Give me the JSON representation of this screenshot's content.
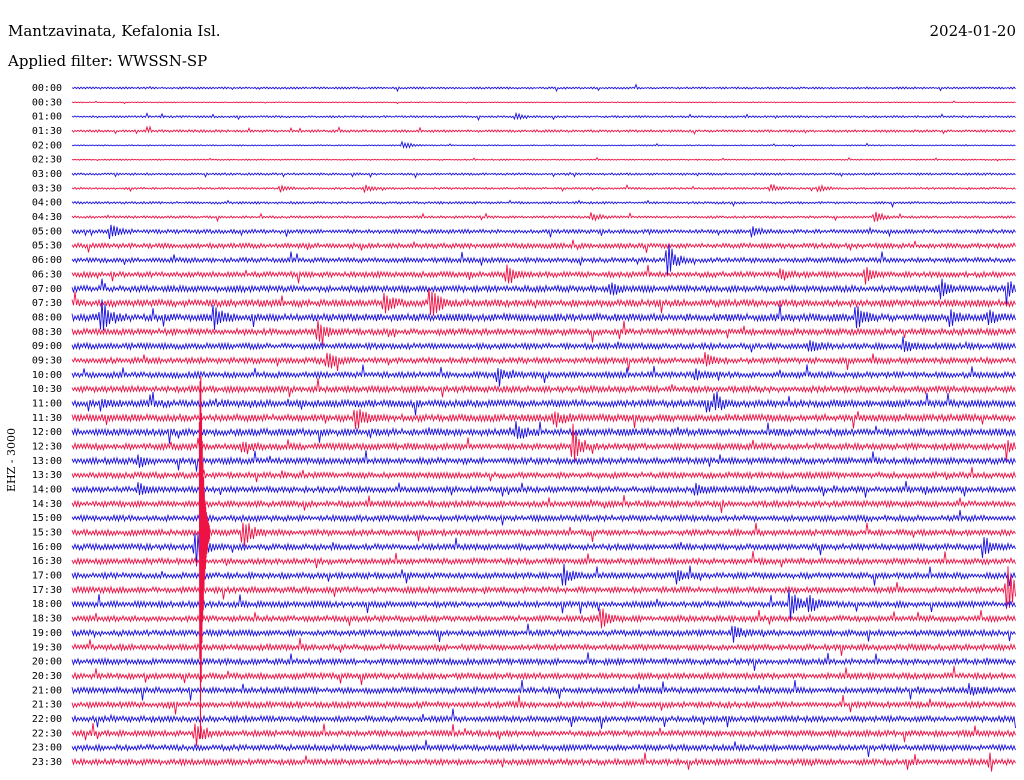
{
  "header": {
    "station": "Mantzavinata, Kefalonia Isl.",
    "date": "2024-01-20",
    "filter": "Applied filter: WWSSN-SP"
  },
  "chart_data": {
    "type": "line",
    "ylabel": "EHZ - 3000",
    "colors": [
      "#1a10e0",
      "#ee1144"
    ],
    "rows": [
      "00:00",
      "00:30",
      "01:00",
      "01:30",
      "02:00",
      "02:30",
      "03:00",
      "03:30",
      "04:00",
      "04:30",
      "05:00",
      "05:30",
      "06:00",
      "06:30",
      "07:00",
      "07:30",
      "08:00",
      "08:30",
      "09:00",
      "09:30",
      "10:00",
      "10:30",
      "11:00",
      "11:30",
      "12:00",
      "12:30",
      "13:00",
      "13:30",
      "14:00",
      "14:30",
      "15:00",
      "15:30",
      "16:00",
      "16:30",
      "17:00",
      "17:30",
      "18:00",
      "18:30",
      "19:00",
      "19:30",
      "20:00",
      "20:30",
      "21:00",
      "21:30",
      "22:00",
      "22:30",
      "23:00",
      "23:30"
    ],
    "noise": [
      1,
      0.4,
      1,
      1.2,
      0.6,
      0.6,
      1.1,
      1,
      1.2,
      1.2,
      2,
      2.5,
      2.5,
      2.8,
      3.2,
      3.6,
      3.8,
      3.2,
      3,
      3,
      3,
      3.2,
      3.6,
      3.6,
      3.6,
      3.2,
      3.2,
      3,
      3,
      3,
      3,
      3,
      3,
      3,
      3,
      3,
      3,
      3,
      3,
      3,
      3,
      3,
      3,
      3,
      3,
      3,
      3,
      3
    ],
    "events": [
      {
        "row": 2,
        "x": 0.47,
        "amp": 4
      },
      {
        "row": 4,
        "x": 0.35,
        "amp": 5
      },
      {
        "row": 7,
        "x": 0.22,
        "amp": 4
      },
      {
        "row": 7,
        "x": 0.31,
        "amp": 4
      },
      {
        "row": 7,
        "x": 0.74,
        "amp": 4
      },
      {
        "row": 7,
        "x": 0.79,
        "amp": 4
      },
      {
        "row": 9,
        "x": 0.55,
        "amp": 6
      },
      {
        "row": 9,
        "x": 0.85,
        "amp": 6
      },
      {
        "row": 10,
        "x": 0.04,
        "amp": 10
      },
      {
        "row": 10,
        "x": 0.72,
        "amp": 6
      },
      {
        "row": 12,
        "x": 0.63,
        "amp": 20
      },
      {
        "row": 13,
        "x": 0.46,
        "amp": 9
      },
      {
        "row": 13,
        "x": 0.75,
        "amp": 7
      },
      {
        "row": 13,
        "x": 0.84,
        "amp": 9
      },
      {
        "row": 14,
        "x": 0.57,
        "amp": 9
      },
      {
        "row": 14,
        "x": 0.92,
        "amp": 10
      },
      {
        "row": 14,
        "x": 0.99,
        "amp": 10
      },
      {
        "row": 15,
        "x": 0.33,
        "amp": 12
      },
      {
        "row": 15,
        "x": 0.38,
        "amp": 20
      },
      {
        "row": 16,
        "x": 0.03,
        "amp": 22
      },
      {
        "row": 16,
        "x": 0.15,
        "amp": 14
      },
      {
        "row": 16,
        "x": 0.83,
        "amp": 16
      },
      {
        "row": 16,
        "x": 0.93,
        "amp": 9
      },
      {
        "row": 16,
        "x": 0.97,
        "amp": 8
      },
      {
        "row": 17,
        "x": 0.26,
        "amp": 12
      },
      {
        "row": 18,
        "x": 0.78,
        "amp": 9
      },
      {
        "row": 18,
        "x": 0.88,
        "amp": 8
      },
      {
        "row": 19,
        "x": 0.27,
        "amp": 12
      },
      {
        "row": 19,
        "x": 0.67,
        "amp": 8
      },
      {
        "row": 20,
        "x": 0.45,
        "amp": 8
      },
      {
        "row": 20,
        "x": 0.66,
        "amp": 7
      },
      {
        "row": 22,
        "x": 0.03,
        "amp": 5
      },
      {
        "row": 22,
        "x": 0.68,
        "amp": 10
      },
      {
        "row": 23,
        "x": 0.3,
        "amp": 14
      },
      {
        "row": 23,
        "x": 0.51,
        "amp": 10
      },
      {
        "row": 24,
        "x": 0.47,
        "amp": 10
      },
      {
        "row": 25,
        "x": 0.18,
        "amp": 8
      },
      {
        "row": 25,
        "x": 0.53,
        "amp": 24
      },
      {
        "row": 25,
        "x": 0.99,
        "amp": 7
      },
      {
        "row": 26,
        "x": 0.07,
        "amp": 7
      },
      {
        "row": 28,
        "x": 0.07,
        "amp": 7
      },
      {
        "row": 28,
        "x": 0.66,
        "amp": 7
      },
      {
        "row": 31,
        "x": 0.18,
        "amp": 22
      },
      {
        "row": 32,
        "x": 0.13,
        "amp": 28
      },
      {
        "row": 32,
        "x": 0.965,
        "amp": 14
      },
      {
        "row": 34,
        "x": 0.52,
        "amp": 12
      },
      {
        "row": 34,
        "x": 0.64,
        "amp": 8
      },
      {
        "row": 35,
        "x": 0.99,
        "amp": 28
      },
      {
        "row": 36,
        "x": 0.76,
        "amp": 16
      },
      {
        "row": 36,
        "x": 0.78,
        "amp": 12
      },
      {
        "row": 37,
        "x": 0.56,
        "amp": 12
      },
      {
        "row": 38,
        "x": 0.7,
        "amp": 9
      },
      {
        "row": 45,
        "x": 0.13,
        "amp": 18
      },
      {
        "row": 42,
        "x": 0.95,
        "amp": 8
      }
    ],
    "big_event": {
      "row": 31,
      "x": 0.135,
      "amp": 190
    }
  }
}
